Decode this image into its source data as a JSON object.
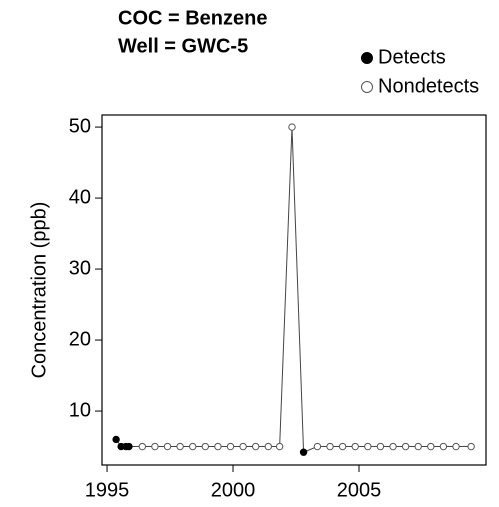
{
  "chart_data": {
    "type": "scatter",
    "title": [
      "COC = Benzene",
      "Well = GWC-5"
    ],
    "y_label": "Concentration (ppb)",
    "series": [
      {
        "name": "Detects",
        "color": "#000000",
        "filled": true,
        "x": [
          1995.36,
          1995.56,
          1995.75,
          1995.87,
          2002.8
        ],
        "values": [
          6,
          5,
          5,
          5,
          4.2
        ]
      },
      {
        "name": "Nondetects",
        "color": "#555555",
        "filled": false,
        "x": [
          1996.4,
          1996.9,
          1997.4,
          1997.9,
          1998.4,
          1998.9,
          1999.4,
          1999.9,
          2000.4,
          2000.9,
          2001.4,
          2001.85,
          2002.34,
          2003.35,
          2003.85,
          2004.35,
          2004.85,
          2005.35,
          2005.85,
          2006.35,
          2006.85,
          2007.35,
          2007.85,
          2008.35,
          2008.85,
          2009.45
        ],
        "values": [
          5,
          5,
          5,
          5,
          5,
          5,
          5,
          5,
          5,
          5,
          5,
          5,
          50,
          5,
          5,
          5,
          5,
          5,
          5,
          5,
          5,
          5,
          5,
          5,
          5,
          5
        ]
      }
    ],
    "xlim": [
      1994.8,
      2010.04
    ],
    "xticks": [
      1995,
      2000,
      2005
    ],
    "ylim": [
      2.4,
      51.7
    ],
    "yticks": [
      10,
      20,
      30,
      40,
      50
    ],
    "legend": "top-right"
  }
}
